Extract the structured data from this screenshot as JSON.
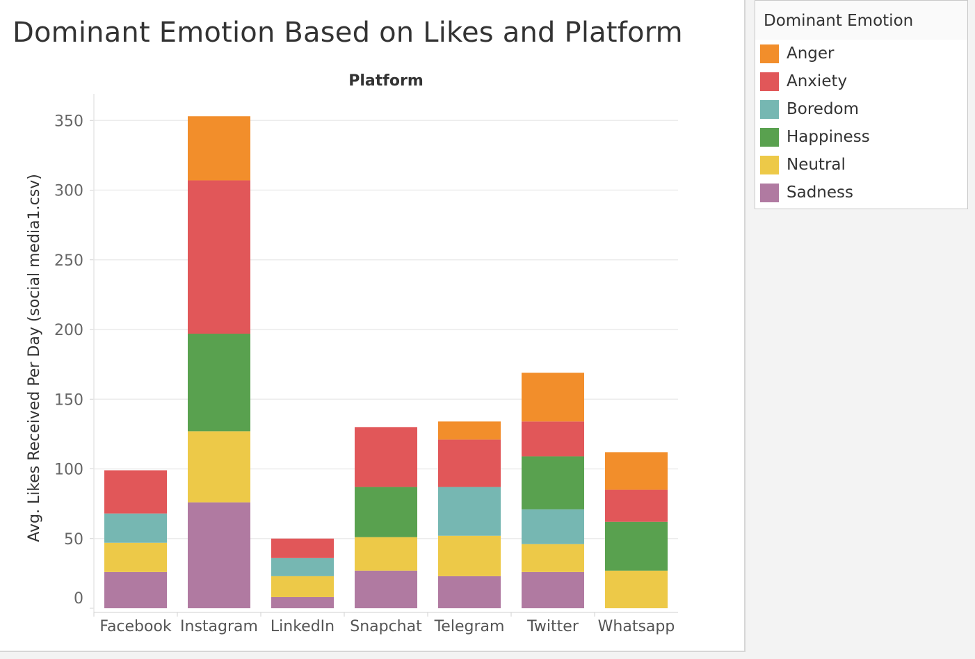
{
  "title": "Dominant Emotion Based on Likes and Platform",
  "legend": {
    "title": "Dominant Emotion",
    "items": [
      {
        "label": "Anger",
        "color": "#f28e2b"
      },
      {
        "label": "Anxiety",
        "color": "#e15759"
      },
      {
        "label": "Boredom",
        "color": "#76b7b2"
      },
      {
        "label": "Happiness",
        "color": "#59a14f"
      },
      {
        "label": "Neutral",
        "color": "#edc948"
      },
      {
        "label": "Sadness",
        "color": "#b07aa1"
      }
    ]
  },
  "chart_data": {
    "type": "bar",
    "stacked": true,
    "title": "Dominant Emotion Based on Likes and Platform",
    "x_header": "Platform",
    "ylabel": "Avg. Likes Received Per Day (social media1.csv)",
    "ylim": [
      0,
      350
    ],
    "yticks": [
      0,
      50,
      100,
      150,
      200,
      250,
      300,
      350
    ],
    "grid": true,
    "legend_position": "right",
    "categories": [
      "Facebook",
      "Instagram",
      "LinkedIn",
      "Snapchat",
      "Telegram",
      "Twitter",
      "Whatsapp"
    ],
    "series": [
      {
        "name": "Sadness",
        "color": "#b07aa1",
        "values": [
          26,
          76,
          8,
          27,
          23,
          26,
          0
        ]
      },
      {
        "name": "Neutral",
        "color": "#edc948",
        "values": [
          21,
          51,
          15,
          24,
          29,
          20,
          27
        ]
      },
      {
        "name": "Boredom",
        "color": "#76b7b2",
        "values": [
          21,
          0,
          13,
          0,
          35,
          25,
          0
        ]
      },
      {
        "name": "Happiness",
        "color": "#59a14f",
        "values": [
          0,
          70,
          0,
          36,
          0,
          38,
          35
        ]
      },
      {
        "name": "Anxiety",
        "color": "#e15759",
        "values": [
          31,
          110,
          14,
          43,
          34,
          25,
          23
        ]
      },
      {
        "name": "Anger",
        "color": "#f28e2b",
        "values": [
          0,
          46,
          0,
          0,
          13,
          35,
          27
        ]
      }
    ]
  }
}
